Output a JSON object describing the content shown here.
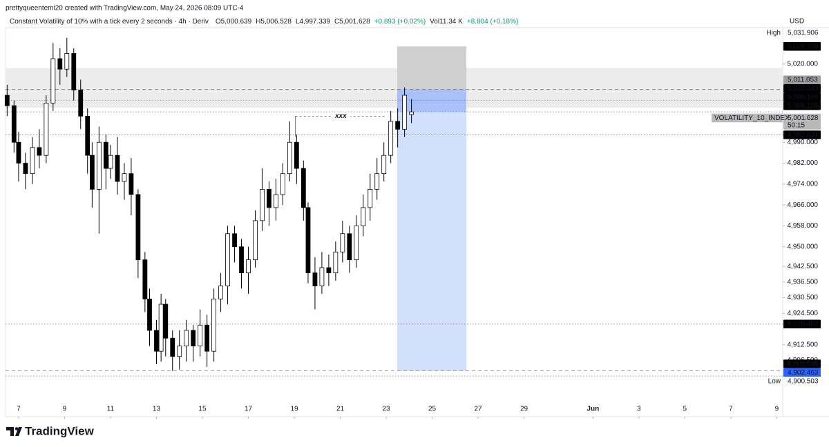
{
  "header": {
    "credit": "prettyqueentemi20 created with TradingView.com, May 24, 2026 08:09 UTC-4",
    "currency": "USD",
    "brand": "TradingView"
  },
  "legend": {
    "title": "Constant Volatility of 10% with a tick every 2 seconds · 4h · Deriv",
    "items": [
      "O5,000.639",
      "H5,006.528",
      "L4,997.339",
      "C5,001.628",
      "+0.893 (+0.02%)",
      "Vol11.34 K",
      "+8.804 (+0.18%)"
    ]
  },
  "chart_data": {
    "type": "candlestick",
    "up_color": "#ffffff",
    "down_color": "#000000",
    "border_color": "#000000",
    "x": [
      6.5,
      6.8,
      7.0,
      7.3,
      7.6,
      7.9,
      8.2,
      8.5,
      8.8,
      9.1,
      9.4,
      9.7,
      10.0,
      10.2,
      10.5,
      10.8,
      11.0,
      11.3,
      11.6,
      11.9,
      12.2,
      12.5,
      12.7,
      13.0,
      13.2,
      13.4,
      13.7,
      14.0,
      14.3,
      14.6,
      14.9,
      15.2,
      15.5,
      15.8,
      16.1,
      16.4,
      16.7,
      17.0,
      17.3,
      17.6,
      17.9,
      18.2,
      18.5,
      18.8,
      19.1,
      19.4,
      19.6,
      19.9,
      20.2,
      20.5,
      20.8,
      21.1,
      21.4,
      21.7,
      22.0,
      22.3,
      22.6,
      22.9,
      23.2,
      23.5,
      23.8,
      24.1
    ],
    "open": [
      5008,
      5004,
      4990,
      4982,
      4978,
      4988,
      4985,
      5005,
      5022,
      5018,
      5024,
      5010,
      5000,
      4985,
      4972,
      4990,
      4980,
      4985,
      4975,
      4978,
      4970,
      4945,
      4930,
      4918,
      4910,
      4928,
      4915,
      4908,
      4912,
      4918,
      4912,
      4920,
      4910,
      4930,
      4935,
      4955,
      4950,
      4940,
      4945,
      4960,
      4972,
      4965,
      4970,
      4978,
      4990,
      4980,
      4965,
      4940,
      4935,
      4942,
      4940,
      4948,
      4955,
      4945,
      4958,
      4965,
      4972,
      4978,
      4985,
      4998,
      4995,
      5000.639
    ],
    "high": [
      5012,
      5006,
      4994,
      4986,
      4992,
      4995,
      5008,
      5028,
      5026,
      5030,
      5026,
      5014,
      5003,
      4990,
      4996,
      4993,
      4989,
      4992,
      4982,
      4984,
      4972,
      4948,
      4934,
      4922,
      4932,
      4930,
      4918,
      4918,
      4922,
      4920,
      4926,
      4924,
      4934,
      4940,
      4958,
      4958,
      4953,
      4950,
      4964,
      4980,
      4975,
      4976,
      4982,
      4998,
      4993,
      4983,
      4967,
      4946,
      4948,
      4947,
      4952,
      4960,
      4958,
      4962,
      4970,
      4978,
      4984,
      4990,
      5002,
      5003,
      5011,
      5006.528
    ],
    "low": [
      5000,
      4986,
      4975,
      4972,
      4974,
      4980,
      4982,
      5002,
      5012,
      5015,
      5006,
      4995,
      4978,
      4965,
      4955,
      4972,
      4976,
      4970,
      4968,
      4962,
      4938,
      4925,
      4912,
      4905,
      4906,
      4908,
      4902.5,
      4903,
      4906,
      4906,
      4908,
      4904,
      4906,
      4925,
      4928,
      4944,
      4934,
      4932,
      4942,
      4956,
      4958,
      4960,
      4966,
      4975,
      4974,
      4960,
      4936,
      4926,
      4932,
      4935,
      4937,
      4944,
      4940,
      4942,
      4954,
      4960,
      4968,
      4975,
      4982,
      4988,
      4992,
      4997.339
    ],
    "close": [
      5004,
      4990,
      4982,
      4978,
      4988,
      4985,
      5005,
      5022,
      5018,
      5024,
      5010,
      5000,
      4985,
      4972,
      4990,
      4980,
      4985,
      4975,
      4978,
      4970,
      4945,
      4930,
      4918,
      4910,
      4928,
      4915,
      4908,
      4912,
      4918,
      4912,
      4920,
      4910,
      4930,
      4935,
      4955,
      4950,
      4940,
      4945,
      4960,
      4972,
      4965,
      4970,
      4978,
      4990,
      4980,
      4965,
      4940,
      4935,
      4942,
      4940,
      4948,
      4955,
      4945,
      4958,
      4965,
      4972,
      4978,
      4985,
      4998,
      4995,
      5008,
      5001.628
    ],
    "xlim": [
      6.43,
      40.26
    ],
    "xticks": [
      7,
      9,
      11,
      13,
      15,
      17,
      19,
      21,
      23,
      25,
      27,
      29,
      {
        "value": 32,
        "label": "Jun"
      },
      {
        "value": 34,
        "label": "3"
      },
      {
        "value": 36,
        "label": "5"
      },
      {
        "value": 38,
        "label": "7"
      },
      {
        "value": 40,
        "label": "9"
      }
    ],
    "ylim": [
      4891.3,
      5033.9
    ],
    "yticks": [
      {
        "value": 5020,
        "label": "5,020.000"
      },
      {
        "value": 4990,
        "label": "4,990.000"
      },
      {
        "value": 4982,
        "label": "4,982.000"
      },
      {
        "value": 4974,
        "label": "4,974.000"
      },
      {
        "value": 4966,
        "label": "4,966.000"
      },
      {
        "value": 4958,
        "label": "4,958.000"
      },
      {
        "value": 4950,
        "label": "4,950.000"
      },
      {
        "value": 4942.5,
        "label": "4,942.500"
      },
      {
        "value": 4936.5,
        "label": "4,936.500"
      },
      {
        "value": 4930.5,
        "label": "4,930.500"
      },
      {
        "value": 4924.5,
        "label": "4,924.500"
      },
      {
        "value": 4912.5,
        "label": "4,912.500"
      },
      {
        "value": 4906.5,
        "label": "4,906.500"
      }
    ],
    "zones": [
      {
        "y": [
          5003.2,
          5018.4
        ],
        "color": "#ececec"
      },
      {
        "x": [
          23.48,
          26.49
        ],
        "y": [
          5010.243,
          5026.706
        ],
        "color": "#cfcfcf"
      },
      {
        "x": [
          23.48,
          26.49
        ],
        "y": [
          5001.628,
          5010.243
        ],
        "color": "#a9c0f8"
      },
      {
        "x": [
          23.48,
          26.49
        ],
        "y": [
          4902.463,
          5001.628
        ],
        "color": "#d3e0fd"
      }
    ],
    "annotation": {
      "text": "xxx",
      "x": [
        19.05,
        23.0
      ],
      "y": 5000
    },
    "price_labels": [
      {
        "value": 5031.906,
        "label": "5,031.906",
        "tag": "High",
        "bg": "#ffffff",
        "color": "#131722"
      },
      {
        "value": 5026.706,
        "label": "5,026.706",
        "bg": "#000000",
        "color": "#ffffff"
      },
      {
        "value": 5011.053,
        "label": "5,011.053",
        "bg": "#9e9e9e",
        "color": "#ffffff"
      },
      {
        "value": 5010.243,
        "label": "5,010.243",
        "bg": "#000000",
        "color": "#ffffff",
        "line": "dash"
      },
      {
        "value": 5006.106,
        "label": "5,006.106",
        "bg": "#000000",
        "color": "#ffffff",
        "line": "dot"
      },
      {
        "value": 5006.106,
        "label": "5,006.106",
        "bg": "#000000",
        "color": "#ffffff"
      },
      {
        "value": 5001.628,
        "label": "5,001.628",
        "tag": "VOLATILITY_10_INDEX",
        "sub": "50:15",
        "bg": "#b8b8b8",
        "color": "#131722",
        "line": "dot"
      },
      {
        "value": 4992.824,
        "label": "4,992.824",
        "bg": "#000000",
        "color": "#ffffff",
        "line": "dot"
      },
      {
        "value": 4920.402,
        "label": "4,920.402",
        "bg": "#000000",
        "color": "#ffffff",
        "line": "dot"
      },
      {
        "value": 4902.585,
        "label": "4,902.585",
        "bg": "#000000",
        "color": "#ffffff",
        "line": "dash"
      },
      {
        "value": 4902.463,
        "label": "4,902.463",
        "bg": "#2962ff",
        "color": "#ffffff"
      },
      {
        "value": 4900.503,
        "label": "4,900.503",
        "tag": "Low",
        "bg": "#ffffff",
        "color": "#131722",
        "line": "dot"
      }
    ]
  }
}
